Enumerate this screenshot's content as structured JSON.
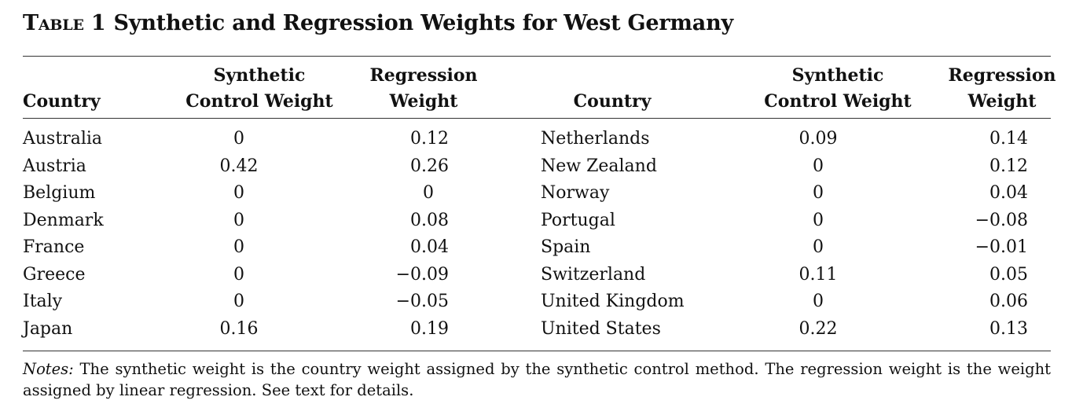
{
  "title": {
    "label": "Table 1",
    "text": "Synthetic and Regression Weights for West Germany"
  },
  "headers": {
    "country": "Country",
    "synthetic_line1": "Synthetic",
    "synthetic_line2": "Control Weight",
    "regression_line1": "Regression",
    "regression_line2": "Weight"
  },
  "left_rows": [
    {
      "country": "Australia",
      "synthetic": "0",
      "regression": "0.12"
    },
    {
      "country": "Austria",
      "synthetic": "0.42",
      "regression": "0.26"
    },
    {
      "country": "Belgium",
      "synthetic": "0",
      "regression": "0"
    },
    {
      "country": "Denmark",
      "synthetic": "0",
      "regression": "0.08"
    },
    {
      "country": "France",
      "synthetic": "0",
      "regression": "0.04"
    },
    {
      "country": "Greece",
      "synthetic": "0",
      "regression": "−0.09"
    },
    {
      "country": "Italy",
      "synthetic": "0",
      "regression": "−0.05"
    },
    {
      "country": "Japan",
      "synthetic": "0.16",
      "regression": "0.19"
    }
  ],
  "right_rows": [
    {
      "country": "Netherlands",
      "synthetic": "0.09",
      "regression": "0.14"
    },
    {
      "country": "New Zealand",
      "synthetic": "0",
      "regression": "0.12"
    },
    {
      "country": "Norway",
      "synthetic": "0",
      "regression": "0.04"
    },
    {
      "country": "Portugal",
      "synthetic": "0",
      "regression": "−0.08"
    },
    {
      "country": "Spain",
      "synthetic": "0",
      "regression": "−0.01"
    },
    {
      "country": "Switzerland",
      "synthetic": "0.11",
      "regression": "0.05"
    },
    {
      "country": "United Kingdom",
      "synthetic": "0",
      "regression": "0.06"
    },
    {
      "country": "United States",
      "synthetic": "0.22",
      "regression": "0.13"
    }
  ],
  "notes": {
    "label": "Notes:",
    "text": " The synthetic weight is the country weight assigned by the synthetic control method. The regression weight is the weight assigned by linear regression. See text for details."
  }
}
